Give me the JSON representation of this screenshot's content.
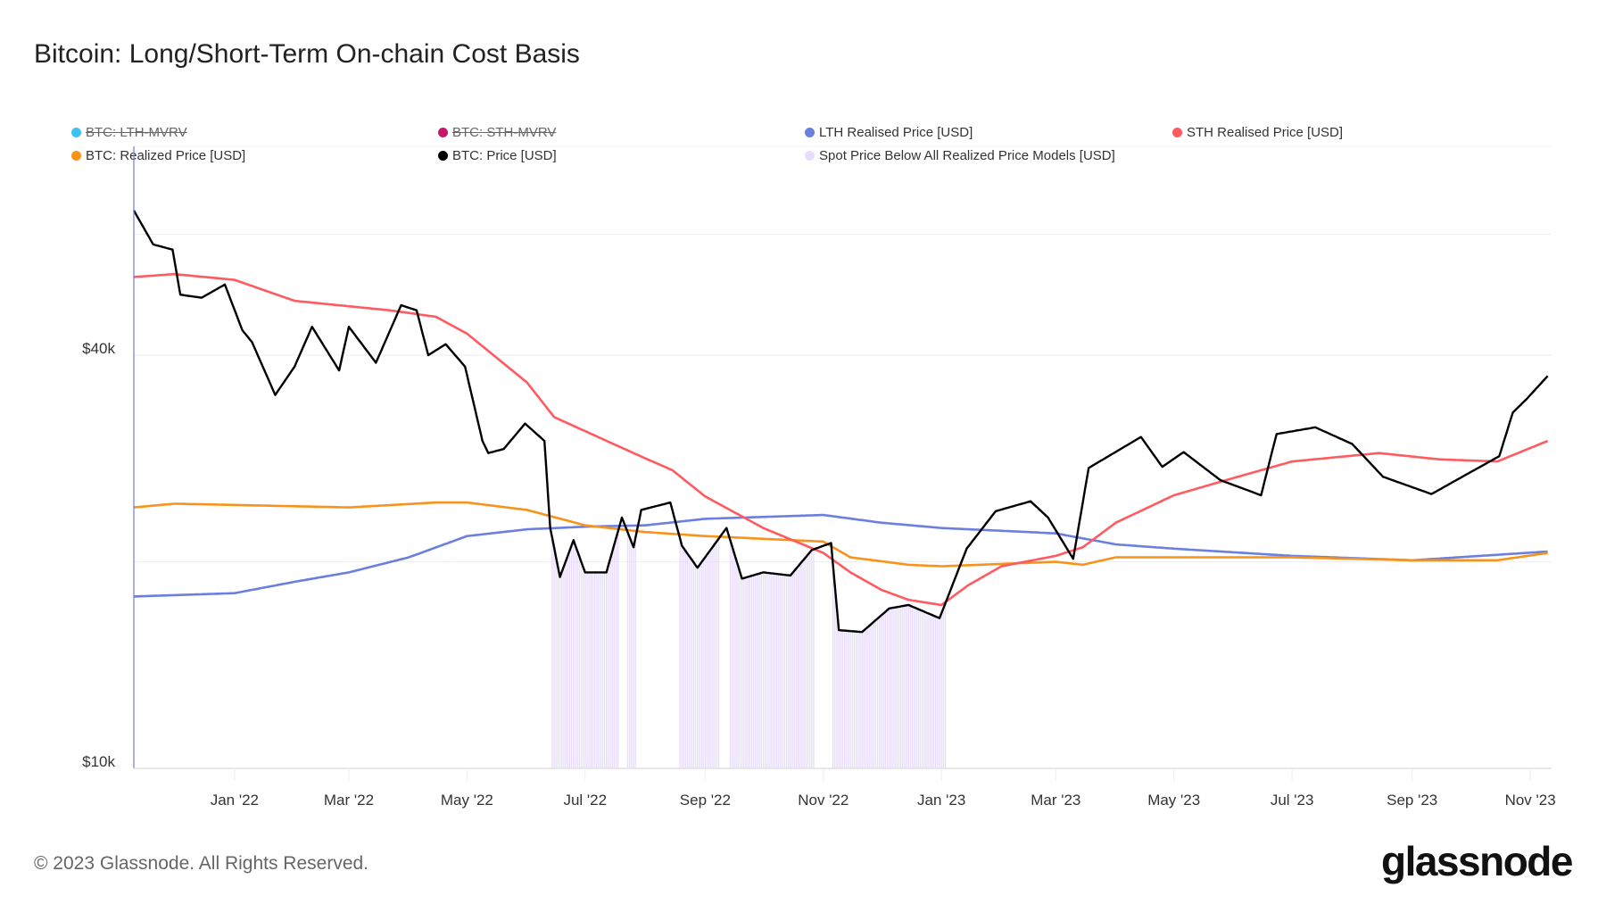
{
  "title": "Bitcoin: Long/Short-Term On-chain Cost Basis",
  "footer": "© 2023 Glassnode. All Rights Reserved.",
  "logo": "glassnode",
  "legend": [
    {
      "label": "BTC: LTH-MVRV",
      "color": "#3fc1f0",
      "hidden": true
    },
    {
      "label": "BTC: STH-MVRV",
      "color": "#c8176b",
      "hidden": true
    },
    {
      "label": "LTH Realised Price [USD]",
      "color": "#6b7fdf",
      "hidden": false
    },
    {
      "label": "STH Realised Price [USD]",
      "color": "#ff5a60",
      "hidden": false
    },
    {
      "label": "BTC: Realized Price [USD]",
      "color": "#f7931a",
      "hidden": false
    },
    {
      "label": "BTC: Price [USD]",
      "color": "#000000",
      "hidden": false
    },
    {
      "label": "Spot Price Below All Realized Price Models [USD]",
      "color": "#e8ddff",
      "hidden": false
    }
  ],
  "chart_data": {
    "type": "line",
    "title": "Bitcoin: Long/Short-Term On-chain Cost Basis",
    "y_scale": "log",
    "ylim": [
      10000,
      80000
    ],
    "xlim": [
      "2021-11-10",
      "2023-11-12"
    ],
    "y_gridlines": [
      10000,
      20000,
      40000,
      60000
    ],
    "y_ticks": [
      {
        "value": 10000,
        "label": "$10k"
      },
      {
        "value": 40000,
        "label": "$40k"
      }
    ],
    "x_ticks": [
      {
        "date": "2022-01-01",
        "label": "Jan '22"
      },
      {
        "date": "2022-03-01",
        "label": "Mar '22"
      },
      {
        "date": "2022-05-01",
        "label": "May '22"
      },
      {
        "date": "2022-07-01",
        "label": "Jul '22"
      },
      {
        "date": "2022-09-01",
        "label": "Sep '22"
      },
      {
        "date": "2022-11-01",
        "label": "Nov '22"
      },
      {
        "date": "2023-01-01",
        "label": "Jan '23"
      },
      {
        "date": "2023-03-01",
        "label": "Mar '23"
      },
      {
        "date": "2023-05-01",
        "label": "May '23"
      },
      {
        "date": "2023-07-01",
        "label": "Jul '23"
      },
      {
        "date": "2023-09-01",
        "label": "Sep '23"
      },
      {
        "date": "2023-11-01",
        "label": "Nov '23"
      }
    ],
    "legend_placement": "top",
    "grid": true,
    "series": [
      {
        "name": "BTC: Price [USD]",
        "color": "#000000",
        "points": [
          [
            "2021-11-10",
            65000
          ],
          [
            "2021-11-20",
            58000
          ],
          [
            "2021-11-30",
            57000
          ],
          [
            "2021-12-04",
            49000
          ],
          [
            "2021-12-15",
            48500
          ],
          [
            "2021-12-27",
            50700
          ],
          [
            "2022-01-05",
            43500
          ],
          [
            "2022-01-10",
            41800
          ],
          [
            "2022-01-22",
            35000
          ],
          [
            "2022-02-01",
            38500
          ],
          [
            "2022-02-10",
            44000
          ],
          [
            "2022-02-24",
            38000
          ],
          [
            "2022-03-01",
            44000
          ],
          [
            "2022-03-15",
            39000
          ],
          [
            "2022-03-28",
            47300
          ],
          [
            "2022-04-05",
            46500
          ],
          [
            "2022-04-11",
            40000
          ],
          [
            "2022-04-20",
            41500
          ],
          [
            "2022-04-30",
            38500
          ],
          [
            "2022-05-09",
            30000
          ],
          [
            "2022-05-12",
            28800
          ],
          [
            "2022-05-20",
            29200
          ],
          [
            "2022-05-31",
            31800
          ],
          [
            "2022-06-10",
            30000
          ],
          [
            "2022-06-13",
            22400
          ],
          [
            "2022-06-18",
            19000
          ],
          [
            "2022-06-25",
            21500
          ],
          [
            "2022-07-01",
            19300
          ],
          [
            "2022-07-12",
            19300
          ],
          [
            "2022-07-20",
            23200
          ],
          [
            "2022-07-26",
            21000
          ],
          [
            "2022-07-30",
            23800
          ],
          [
            "2022-08-14",
            24400
          ],
          [
            "2022-08-20",
            21100
          ],
          [
            "2022-08-28",
            19600
          ],
          [
            "2022-09-12",
            22400
          ],
          [
            "2022-09-20",
            18900
          ],
          [
            "2022-10-01",
            19300
          ],
          [
            "2022-10-15",
            19100
          ],
          [
            "2022-10-26",
            20800
          ],
          [
            "2022-11-05",
            21300
          ],
          [
            "2022-11-09",
            15900
          ],
          [
            "2022-11-21",
            15800
          ],
          [
            "2022-12-05",
            17100
          ],
          [
            "2022-12-15",
            17300
          ],
          [
            "2022-12-31",
            16550
          ],
          [
            "2023-01-14",
            20900
          ],
          [
            "2023-01-29",
            23700
          ],
          [
            "2023-02-16",
            24500
          ],
          [
            "2023-02-25",
            23200
          ],
          [
            "2023-03-10",
            20200
          ],
          [
            "2023-03-18",
            27400
          ],
          [
            "2023-04-14",
            30400
          ],
          [
            "2023-04-25",
            27500
          ],
          [
            "2023-05-06",
            28900
          ],
          [
            "2023-05-25",
            26300
          ],
          [
            "2023-06-15",
            25000
          ],
          [
            "2023-06-23",
            30700
          ],
          [
            "2023-07-13",
            31400
          ],
          [
            "2023-08-01",
            29700
          ],
          [
            "2023-08-17",
            26600
          ],
          [
            "2023-09-11",
            25100
          ],
          [
            "2023-09-30",
            26900
          ],
          [
            "2023-10-16",
            28500
          ],
          [
            "2023-10-23",
            33000
          ],
          [
            "2023-10-30",
            34500
          ],
          [
            "2023-11-10",
            37300
          ]
        ]
      },
      {
        "name": "STH Realised Price [USD]",
        "color": "#ff5a60",
        "points": [
          [
            "2021-11-10",
            52000
          ],
          [
            "2021-12-01",
            52500
          ],
          [
            "2022-01-01",
            51500
          ],
          [
            "2022-02-01",
            48000
          ],
          [
            "2022-03-22",
            46500
          ],
          [
            "2022-04-15",
            45500
          ],
          [
            "2022-05-01",
            43000
          ],
          [
            "2022-06-01",
            36500
          ],
          [
            "2022-06-15",
            32500
          ],
          [
            "2022-07-01",
            31000
          ],
          [
            "2022-08-01",
            28300
          ],
          [
            "2022-08-15",
            27200
          ],
          [
            "2022-09-01",
            24900
          ],
          [
            "2022-10-01",
            22400
          ],
          [
            "2022-11-01",
            20600
          ],
          [
            "2022-11-15",
            19300
          ],
          [
            "2022-12-01",
            18200
          ],
          [
            "2022-12-15",
            17600
          ],
          [
            "2023-01-01",
            17300
          ],
          [
            "2023-01-15",
            18500
          ],
          [
            "2023-02-01",
            19700
          ],
          [
            "2023-03-01",
            20400
          ],
          [
            "2023-03-15",
            21000
          ],
          [
            "2023-04-01",
            22800
          ],
          [
            "2023-05-01",
            25000
          ],
          [
            "2023-06-01",
            26500
          ],
          [
            "2023-07-01",
            28000
          ],
          [
            "2023-08-15",
            28800
          ],
          [
            "2023-09-15",
            28200
          ],
          [
            "2023-10-15",
            28000
          ],
          [
            "2023-11-10",
            30000
          ]
        ]
      },
      {
        "name": "LTH Realised Price [USD]",
        "color": "#6b7fdf",
        "points": [
          [
            "2021-11-10",
            17800
          ],
          [
            "2022-01-01",
            18000
          ],
          [
            "2022-02-01",
            18700
          ],
          [
            "2022-03-01",
            19300
          ],
          [
            "2022-04-01",
            20300
          ],
          [
            "2022-05-01",
            21800
          ],
          [
            "2022-06-01",
            22300
          ],
          [
            "2022-07-01",
            22500
          ],
          [
            "2022-08-01",
            22600
          ],
          [
            "2022-09-01",
            23100
          ],
          [
            "2022-11-01",
            23400
          ],
          [
            "2022-12-01",
            22800
          ],
          [
            "2023-01-01",
            22400
          ],
          [
            "2023-03-01",
            22000
          ],
          [
            "2023-04-01",
            21200
          ],
          [
            "2023-05-01",
            20900
          ],
          [
            "2023-07-01",
            20400
          ],
          [
            "2023-09-01",
            20100
          ],
          [
            "2023-11-10",
            20700
          ]
        ]
      },
      {
        "name": "BTC: Realized Price [USD]",
        "color": "#f7931a",
        "points": [
          [
            "2021-11-10",
            24000
          ],
          [
            "2021-12-01",
            24300
          ],
          [
            "2022-01-01",
            24200
          ],
          [
            "2022-03-01",
            24000
          ],
          [
            "2022-04-15",
            24400
          ],
          [
            "2022-05-01",
            24400
          ],
          [
            "2022-06-01",
            23800
          ],
          [
            "2022-07-01",
            22600
          ],
          [
            "2022-08-01",
            22100
          ],
          [
            "2022-09-01",
            21800
          ],
          [
            "2022-11-01",
            21400
          ],
          [
            "2022-11-15",
            20300
          ],
          [
            "2022-12-15",
            19800
          ],
          [
            "2023-01-01",
            19700
          ],
          [
            "2023-03-01",
            20000
          ],
          [
            "2023-03-15",
            19800
          ],
          [
            "2023-04-01",
            20300
          ],
          [
            "2023-05-01",
            20300
          ],
          [
            "2023-07-01",
            20300
          ],
          [
            "2023-09-01",
            20100
          ],
          [
            "2023-10-15",
            20100
          ],
          [
            "2023-11-10",
            20600
          ]
        ]
      }
    ]
  }
}
